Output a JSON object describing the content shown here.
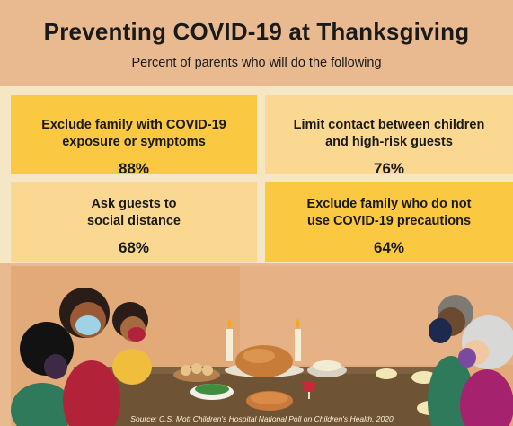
{
  "header": {
    "title": "Preventing COVID-19 at Thanksgiving",
    "subtitle": "Percent of parents who will  do the following"
  },
  "cards": [
    {
      "label_line1": "Exclude family with COVID-19",
      "label_line2": "exposure or symptoms",
      "value": "88%",
      "color": "#fbc842"
    },
    {
      "label_line1": "Limit contact between children",
      "label_line2": "and high-risk guests",
      "value": "76%",
      "color": "#fad891"
    },
    {
      "label_line1": "Ask guests to",
      "label_line2": "social distance",
      "value": "68%",
      "color": "#fad891"
    },
    {
      "label_line1": "Exclude family who do not",
      "label_line2": "use COVID-19 precautions",
      "value": "64%",
      "color": "#fbc842"
    }
  ],
  "illustration": {
    "icons": [
      "family-dinner-illustration",
      "turkey-icon",
      "candle-icon",
      "face-mask-icon"
    ]
  },
  "footer": {
    "source": "Source: C.S. Mott Children's Hospital National Poll on Children's Health, 2020"
  }
}
